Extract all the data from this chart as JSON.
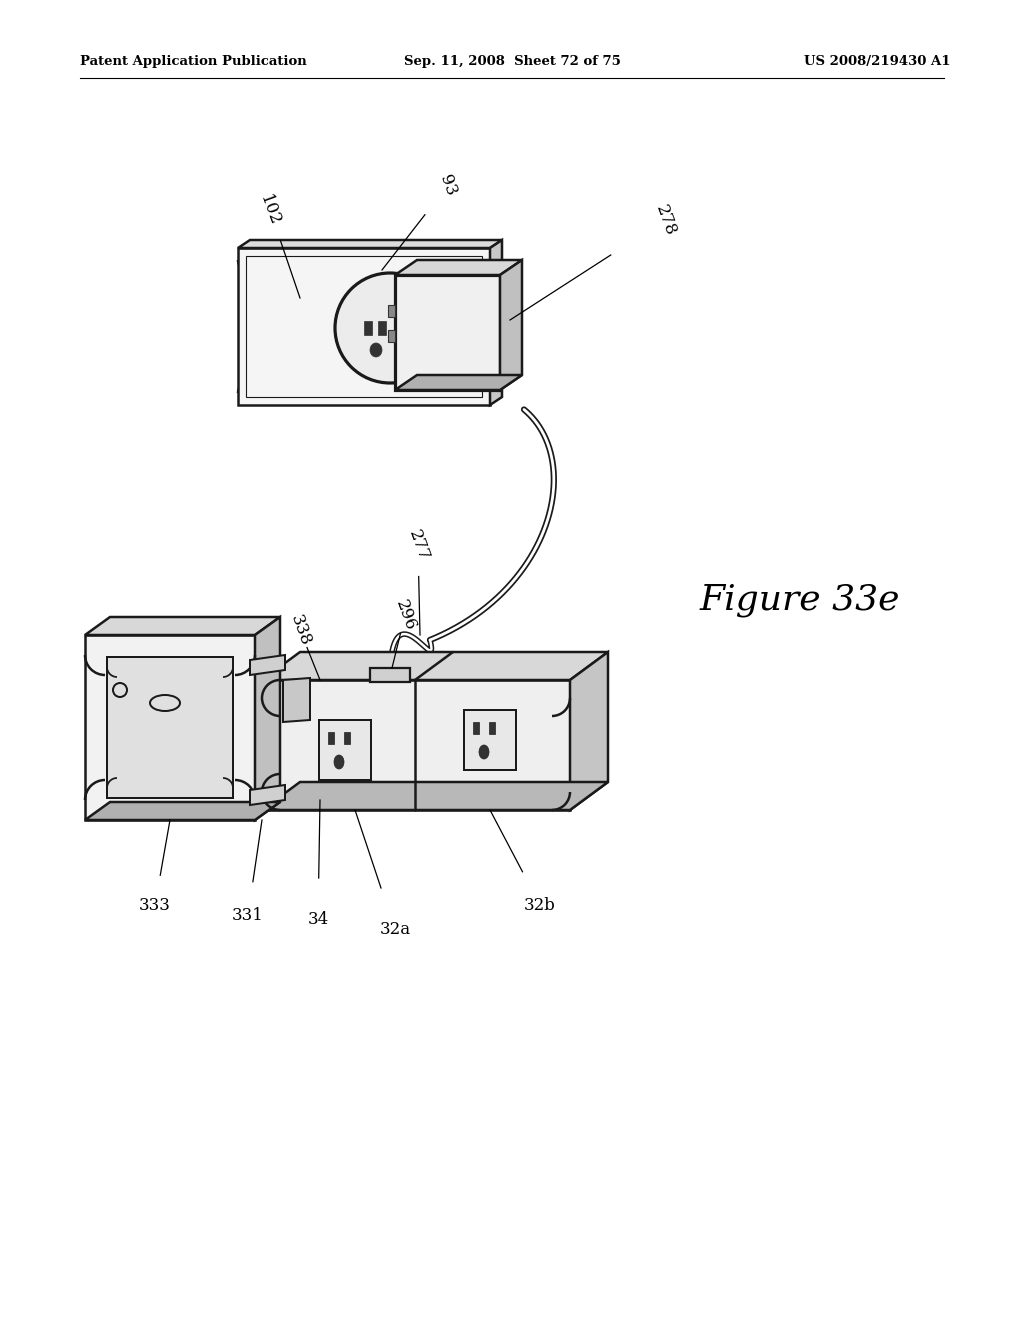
{
  "bg_color": "#ffffff",
  "header_left": "Patent Application Publication",
  "header_mid": "Sep. 11, 2008  Sheet 72 of 75",
  "header_right": "US 2008/219430 A1",
  "figure_label": "Figure 33e",
  "line_color": "#1a1a1a",
  "line_width": 1.8,
  "fig_w": 10.24,
  "fig_h": 13.2,
  "dpi": 100
}
